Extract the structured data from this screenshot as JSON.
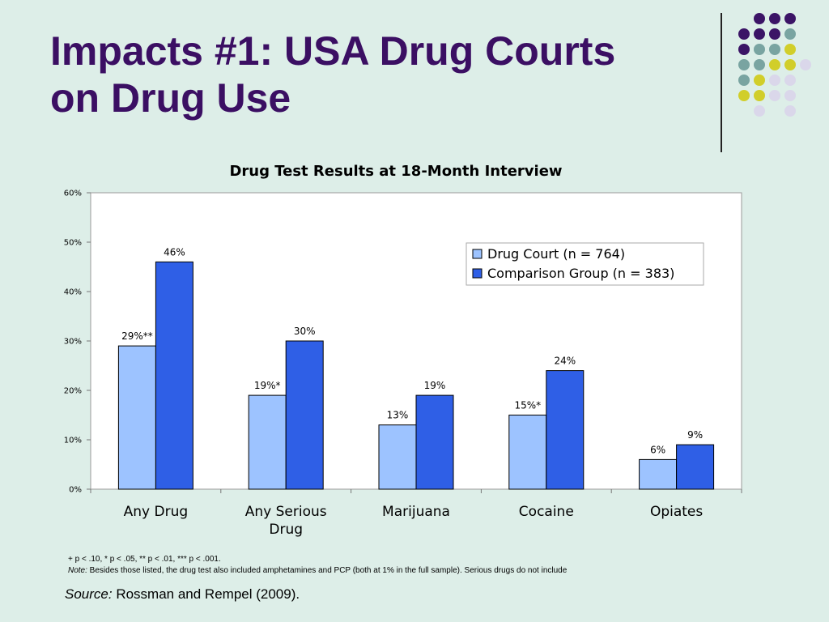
{
  "slide": {
    "title_line1": "Impacts #1: USA Drug Courts",
    "title_line2": "on Drug Use"
  },
  "colors": {
    "title": "#3b0f63",
    "background": "#ddeee8",
    "drug_court": "#9dc3ff",
    "comparison": "#2f5fe6",
    "dot_purple": "#3b1466",
    "dot_teal": "#79a4a1",
    "dot_yellow": "#d1ce2a",
    "dot_lilac": "#dad7ea"
  },
  "chart_data": {
    "type": "bar",
    "title": "Drug Test Results at 18-Month Interview",
    "categories": [
      "Any Drug",
      "Any Serious Drug",
      "Marijuana",
      "Cocaine",
      "Opiates"
    ],
    "series": [
      {
        "name": "Drug Court (n = 764)",
        "values": [
          29,
          19,
          13,
          15,
          6
        ],
        "labels": [
          "29%**",
          "19%*",
          "13%",
          "15%*",
          "6%"
        ]
      },
      {
        "name": "Comparison Group (n = 383)",
        "values": [
          46,
          30,
          19,
          24,
          9
        ],
        "labels": [
          "46%",
          "30%",
          "19%",
          "24%",
          "9%"
        ]
      }
    ],
    "ylim": [
      0,
      60
    ],
    "yticks": [
      "0%",
      "10%",
      "20%",
      "30%",
      "40%",
      "50%",
      "60%"
    ],
    "legend_position": "top-right",
    "grid": false
  },
  "footnotes": {
    "significance": "+ p < .10, * p < .05, ** p < .01, *** p < .001.",
    "note_label": "Note:",
    "note_text": " Besides those listed, the drug test also included amphetamines and PCP (both at 1% in the full sample). Serious drugs do not include"
  },
  "source": {
    "label": "Source:",
    "text": " Rossman and Rempel (2009)."
  }
}
